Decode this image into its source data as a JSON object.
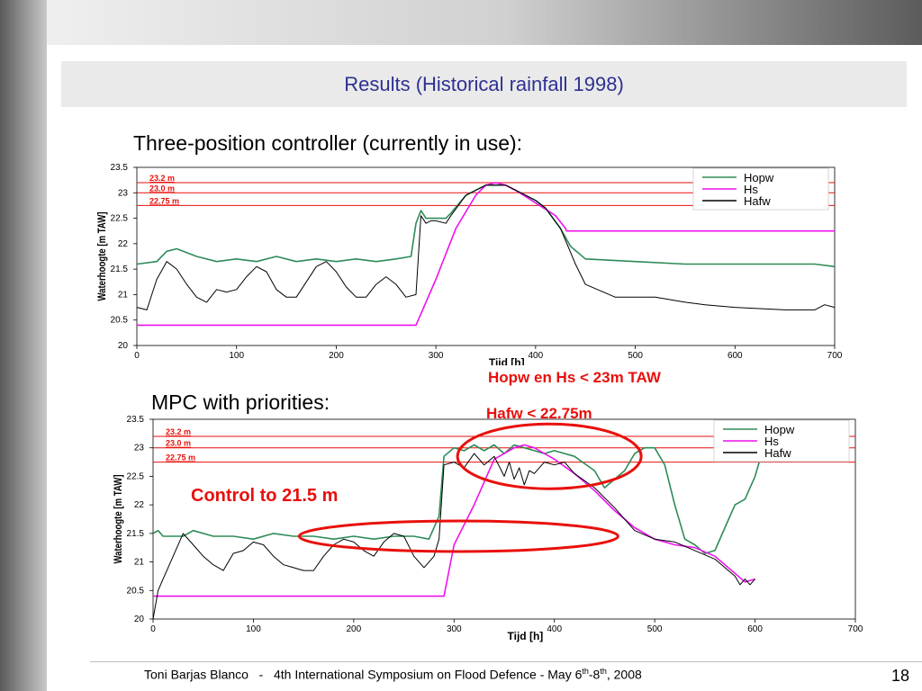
{
  "slide": {
    "title": "Results (Historical rainfall 1998)",
    "heading_top": "Three-position controller (currently in use):",
    "heading_bottom": "MPC with priorities:",
    "annotation_control": "Control to 21.5 m",
    "annotation_hopw": "Hopw en Hs < 23m TAW",
    "annotation_hafw": "Hafw <  22.75m",
    "footer": {
      "author": "Toni Barjas Blanco",
      "separator": "-",
      "event": "4th International Symposium on Flood Defence - May 6",
      "sup1": "th",
      "dash": "-8",
      "sup2": "th",
      "year": ", 2008"
    },
    "page_number": "18"
  },
  "colors": {
    "Hopw": "#2e8b57",
    "Hs": "#ee11ee",
    "Hafw": "#000000",
    "limits": "#e8100c",
    "accent": "#2e3192"
  },
  "chart_data": [
    {
      "type": "line",
      "xlabel": "Tijd [h]",
      "ylabel": "Waterhoogte [m TAW]",
      "xlim": [
        0,
        700
      ],
      "ylim": [
        20,
        23.5
      ],
      "xticks": [
        0,
        100,
        200,
        300,
        400,
        500,
        600,
        700
      ],
      "yticks": [
        20,
        20.5,
        21,
        21.5,
        22,
        22.5,
        23,
        23.5
      ],
      "legend": "top-right",
      "hlines": [
        {
          "label": "23.2 m",
          "y": 23.2
        },
        {
          "label": "23.0 m",
          "y": 23.0
        },
        {
          "label": "22.75 m",
          "y": 22.75
        }
      ],
      "series": [
        {
          "name": "Hopw",
          "x": [
            0,
            20,
            30,
            40,
            60,
            80,
            100,
            120,
            140,
            160,
            180,
            200,
            220,
            240,
            260,
            275,
            280,
            285,
            290,
            300,
            310,
            315,
            330,
            350,
            370,
            380,
            390,
            400,
            410,
            425,
            435,
            450,
            500,
            550,
            600,
            650,
            680,
            700
          ],
          "y": [
            21.6,
            21.65,
            21.85,
            21.9,
            21.75,
            21.65,
            21.7,
            21.65,
            21.75,
            21.65,
            21.7,
            21.65,
            21.7,
            21.65,
            21.7,
            21.75,
            22.4,
            22.65,
            22.5,
            22.5,
            22.5,
            22.6,
            22.95,
            23.15,
            23.15,
            23.05,
            22.95,
            22.85,
            22.7,
            22.3,
            21.95,
            21.7,
            21.65,
            21.6,
            21.6,
            21.6,
            21.6,
            21.55
          ]
        },
        {
          "name": "Hs",
          "x": [
            0,
            280,
            300,
            320,
            340,
            350,
            360,
            370,
            380,
            400,
            420,
            430,
            431,
            700
          ],
          "y": [
            20.4,
            20.4,
            21.3,
            22.3,
            22.95,
            23.15,
            23.2,
            23.15,
            23.05,
            22.8,
            22.55,
            22.3,
            22.25,
            22.25
          ]
        },
        {
          "name": "Hafw",
          "x": [
            0,
            10,
            20,
            30,
            40,
            50,
            60,
            70,
            80,
            90,
            100,
            110,
            120,
            130,
            140,
            150,
            160,
            170,
            180,
            190,
            200,
            210,
            220,
            230,
            240,
            250,
            260,
            270,
            280,
            285,
            290,
            295,
            300,
            310,
            315,
            330,
            350,
            370,
            380,
            390,
            400,
            410,
            425,
            440,
            450,
            480,
            500,
            520,
            550,
            570,
            600,
            650,
            680,
            690,
            700
          ],
          "y": [
            20.75,
            20.7,
            21.3,
            21.65,
            21.5,
            21.2,
            20.95,
            20.85,
            21.1,
            21.05,
            21.1,
            21.35,
            21.55,
            21.45,
            21.1,
            20.95,
            20.95,
            21.25,
            21.55,
            21.65,
            21.45,
            21.15,
            20.95,
            20.95,
            21.2,
            21.35,
            21.2,
            20.95,
            21.0,
            22.55,
            22.4,
            22.45,
            22.45,
            22.4,
            22.55,
            22.95,
            23.15,
            23.15,
            23.05,
            22.95,
            22.85,
            22.7,
            22.3,
            21.6,
            21.2,
            20.95,
            20.95,
            20.95,
            20.85,
            20.8,
            20.75,
            20.7,
            20.7,
            20.8,
            20.75
          ]
        }
      ]
    },
    {
      "type": "line",
      "xlabel": "Tijd [h]",
      "ylabel": "Waterhoogte [m TAW]",
      "xlim": [
        0,
        700
      ],
      "ylim": [
        20,
        23.5
      ],
      "xticks": [
        0,
        100,
        200,
        300,
        400,
        500,
        600,
        700
      ],
      "yticks": [
        20,
        20.5,
        21,
        21.5,
        22,
        22.5,
        23,
        23.5
      ],
      "legend": "top-right",
      "hlines": [
        {
          "label": "23.2 m",
          "y": 23.2
        },
        {
          "label": "23.0 m",
          "y": 23.0
        },
        {
          "label": "22.75 m",
          "y": 22.75
        }
      ],
      "series": [
        {
          "name": "Hopw",
          "x": [
            0,
            5,
            10,
            30,
            40,
            60,
            80,
            100,
            120,
            140,
            160,
            180,
            200,
            220,
            240,
            260,
            275,
            285,
            290,
            300,
            310,
            320,
            330,
            340,
            350,
            360,
            370,
            380,
            390,
            400,
            420,
            440,
            450,
            460,
            470,
            480,
            490,
            500,
            510,
            520,
            530,
            540,
            550,
            560,
            570,
            580,
            590,
            600,
            610,
            620
          ],
          "y": [
            21.5,
            21.55,
            21.45,
            21.45,
            21.55,
            21.45,
            21.45,
            21.4,
            21.5,
            21.45,
            21.45,
            21.4,
            21.45,
            21.4,
            21.45,
            21.45,
            21.4,
            21.8,
            22.85,
            23.0,
            22.95,
            23.05,
            22.95,
            23.05,
            22.9,
            23.05,
            23.0,
            22.95,
            22.9,
            22.95,
            22.85,
            22.6,
            22.3,
            22.45,
            22.6,
            22.9,
            23.0,
            23.0,
            22.7,
            22.0,
            21.4,
            21.3,
            21.15,
            21.2,
            21.6,
            22.0,
            22.1,
            22.5,
            23.1,
            23.5
          ]
        },
        {
          "name": "Hs",
          "x": [
            0,
            290,
            300,
            320,
            340,
            360,
            370,
            380,
            400,
            420,
            440,
            460,
            480,
            500,
            520,
            540,
            560,
            580,
            590,
            600
          ],
          "y": [
            20.4,
            20.4,
            21.3,
            22.0,
            22.8,
            23.0,
            23.05,
            23.0,
            22.8,
            22.55,
            22.25,
            21.9,
            21.6,
            21.4,
            21.3,
            21.25,
            21.1,
            20.8,
            20.65,
            20.7
          ]
        },
        {
          "name": "Hafw",
          "x": [
            0,
            5,
            10,
            20,
            30,
            40,
            50,
            60,
            70,
            80,
            90,
            100,
            110,
            120,
            130,
            140,
            150,
            160,
            170,
            180,
            190,
            200,
            210,
            220,
            230,
            240,
            250,
            260,
            270,
            280,
            285,
            290,
            300,
            310,
            320,
            330,
            340,
            350,
            355,
            360,
            365,
            370,
            375,
            380,
            390,
            400,
            410,
            420,
            440,
            460,
            480,
            500,
            520,
            540,
            560,
            580,
            585,
            590,
            595,
            600
          ],
          "y": [
            20.0,
            20.5,
            20.7,
            21.1,
            21.5,
            21.3,
            21.1,
            20.95,
            20.85,
            21.15,
            21.2,
            21.35,
            21.3,
            21.1,
            20.95,
            20.9,
            20.85,
            20.85,
            21.1,
            21.3,
            21.4,
            21.35,
            21.2,
            21.1,
            21.35,
            21.5,
            21.45,
            21.1,
            20.9,
            21.1,
            21.4,
            22.7,
            22.75,
            22.65,
            22.9,
            22.7,
            22.85,
            22.5,
            22.75,
            22.45,
            22.65,
            22.35,
            22.6,
            22.55,
            22.75,
            22.7,
            22.75,
            22.55,
            22.3,
            21.95,
            21.55,
            21.4,
            21.35,
            21.2,
            21.05,
            20.75,
            20.6,
            20.7,
            20.6,
            20.7
          ]
        }
      ]
    }
  ]
}
